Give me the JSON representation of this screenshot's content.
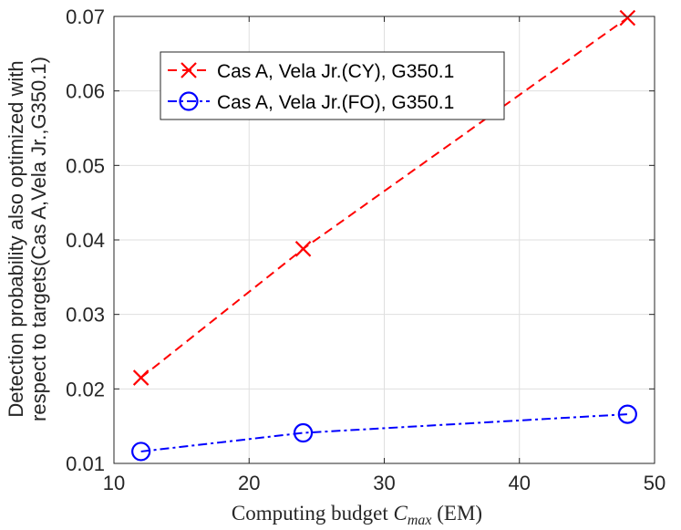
{
  "chart_data": {
    "type": "line",
    "title": "",
    "xlabel": {
      "prefix": "Computing budget ",
      "var": "C",
      "sub": "max",
      "suffix": " (EM)"
    },
    "ylabel_lines": [
      "Detection probability also optimized with",
      "respect to targets(Cas A,Vela Jr.,G350.1)"
    ],
    "xlim": [
      10,
      50
    ],
    "ylim": [
      0.01,
      0.07
    ],
    "xticks": [
      10,
      20,
      30,
      40,
      50
    ],
    "xtick_labels": [
      "10",
      "20",
      "30",
      "40",
      "50"
    ],
    "yticks": [
      0.01,
      0.02,
      0.03,
      0.04,
      0.05,
      0.06,
      0.07
    ],
    "ytick_labels": [
      "0.01",
      "0.02",
      "0.03",
      "0.04",
      "0.05",
      "0.06",
      "0.07"
    ],
    "grid": true,
    "legend_position": "top-left",
    "series": [
      {
        "name": "Cas A, Vela Jr.(CY), G350.1",
        "color": "#ff0000",
        "linestyle": "dashed",
        "marker": "x",
        "x": [
          12,
          24,
          48
        ],
        "y": [
          0.0215,
          0.0388,
          0.0698
        ]
      },
      {
        "name": "Cas A, Vela Jr.(FO), G350.1",
        "color": "#0000ff",
        "linestyle": "dashdot",
        "marker": "circle",
        "x": [
          12,
          24,
          48
        ],
        "y": [
          0.0116,
          0.0141,
          0.0166
        ]
      }
    ]
  }
}
